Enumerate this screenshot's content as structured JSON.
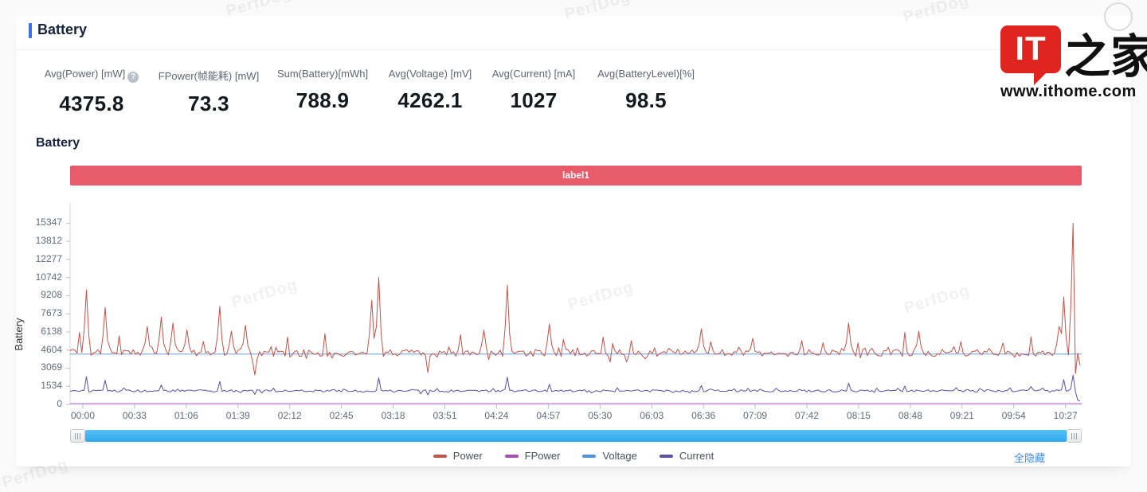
{
  "page": {
    "card_title": "Battery",
    "section_title": "Battery",
    "banner_label": "label1",
    "hide_all_link": "全隐藏"
  },
  "stats": [
    {
      "label": "Avg(Power) [mW]",
      "value": "4375.8",
      "has_help": true,
      "help_icon": "?"
    },
    {
      "label": "FPower(帧能耗) [mW]",
      "value": "73.3"
    },
    {
      "label": "Sum(Battery)[mWh]",
      "value": "788.9"
    },
    {
      "label": "Avg(Voltage) [mV]",
      "value": "4262.1"
    },
    {
      "label": "Avg(Current) [mA]",
      "value": "1027"
    },
    {
      "label": "Avg(BatteryLevel)[%]",
      "value": "98.5"
    }
  ],
  "watermark": {
    "text": "PerfDog",
    "brand_it": "IT",
    "brand_home": "之家",
    "brand_site": "www.ithome.com"
  },
  "chart_data": {
    "type": "line",
    "title": "label1",
    "ylabel": "Battery",
    "ylim": [
      0,
      15347
    ],
    "y_ticks": [
      0,
      1534,
      3069,
      4604,
      6138,
      7673,
      9208,
      10742,
      12277,
      13812,
      15347
    ],
    "x_ticks": [
      "00:00",
      "00:33",
      "01:06",
      "01:39",
      "02:12",
      "02:45",
      "03:18",
      "03:51",
      "04:24",
      "04:57",
      "05:30",
      "06:03",
      "06:36",
      "07:09",
      "07:42",
      "08:15",
      "08:48",
      "09:21",
      "09:54",
      "10:27"
    ],
    "x_duration_s": 649,
    "grid": false,
    "legend_position": "bottom",
    "legend": [
      {
        "name": "Power",
        "color": "#bf574b"
      },
      {
        "name": "FPower",
        "color": "#a24fb0"
      },
      {
        "name": "Voltage",
        "color": "#4b97d8"
      },
      {
        "name": "Current",
        "color": "#5c50a7"
      }
    ],
    "seed": 11,
    "series": [
      {
        "name": "Voltage",
        "color": "#6d9ed8",
        "const": 4262
      },
      {
        "name": "FPower",
        "color": "#c671c9",
        "const": 73
      },
      {
        "name": "Current",
        "color": "#5c50a7",
        "base": 1150,
        "noise": 90,
        "spikes": [
          [
            10,
            2350
          ],
          [
            23,
            2050
          ],
          [
            58,
            1650
          ],
          [
            96,
            1950
          ],
          [
            119,
            850
          ],
          [
            198,
            2250
          ],
          [
            230,
            800
          ],
          [
            281,
            2300
          ],
          [
            308,
            1700
          ],
          [
            405,
            1600
          ],
          [
            499,
            1800
          ],
          [
            536,
            1550
          ],
          [
            617,
            1500
          ],
          [
            638,
            2100
          ],
          [
            643,
            2480
          ],
          [
            646,
            350
          ],
          [
            648,
            300
          ]
        ]
      },
      {
        "name": "Power",
        "color": "#c4524a",
        "base": 4350,
        "noise": 290,
        "spikes": [
          [
            6,
            6100
          ],
          [
            10,
            9700
          ],
          [
            23,
            8200
          ],
          [
            32,
            5800
          ],
          [
            50,
            6600
          ],
          [
            58,
            7400
          ],
          [
            66,
            6900
          ],
          [
            75,
            6300
          ],
          [
            96,
            8300
          ],
          [
            104,
            6200
          ],
          [
            113,
            6700
          ],
          [
            119,
            2500
          ],
          [
            140,
            5700
          ],
          [
            163,
            6000
          ],
          [
            193,
            8800
          ],
          [
            198,
            10742
          ],
          [
            204,
            4400
          ],
          [
            230,
            2700
          ],
          [
            250,
            5900
          ],
          [
            266,
            6300
          ],
          [
            281,
            10100
          ],
          [
            288,
            4500
          ],
          [
            308,
            6800
          ],
          [
            316,
            5500
          ],
          [
            342,
            5700
          ],
          [
            360,
            5400
          ],
          [
            405,
            6400
          ],
          [
            411,
            5300
          ],
          [
            438,
            5600
          ],
          [
            470,
            5400
          ],
          [
            499,
            6900
          ],
          [
            506,
            5200
          ],
          [
            536,
            6100
          ],
          [
            544,
            6200
          ],
          [
            571,
            5300
          ],
          [
            598,
            5200
          ],
          [
            617,
            5700
          ],
          [
            634,
            6600
          ],
          [
            638,
            9100
          ],
          [
            643,
            15347
          ],
          [
            645,
            2600
          ],
          [
            648,
            3300
          ]
        ]
      }
    ]
  }
}
